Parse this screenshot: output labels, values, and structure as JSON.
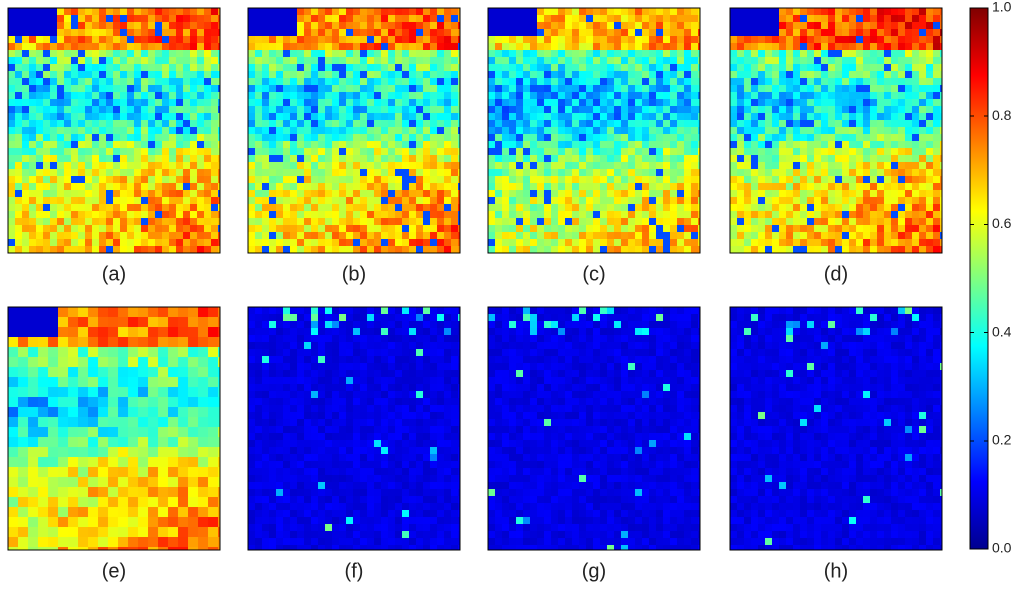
{
  "panels": [
    {
      "label": "(a)"
    },
    {
      "label": "(b)"
    },
    {
      "label": "(c)"
    },
    {
      "label": "(d)"
    },
    {
      "label": "(e)"
    },
    {
      "label": "(f)"
    },
    {
      "label": "(g)"
    },
    {
      "label": "(h)"
    }
  ],
  "colorbar": {
    "ylim": [
      0,
      1
    ],
    "ticks": [
      {
        "value": 0,
        "label": "0.0"
      },
      0.2,
      0.4,
      0.6,
      0.8,
      {
        "value": 1,
        "label": "1.0"
      }
    ]
  }
}
